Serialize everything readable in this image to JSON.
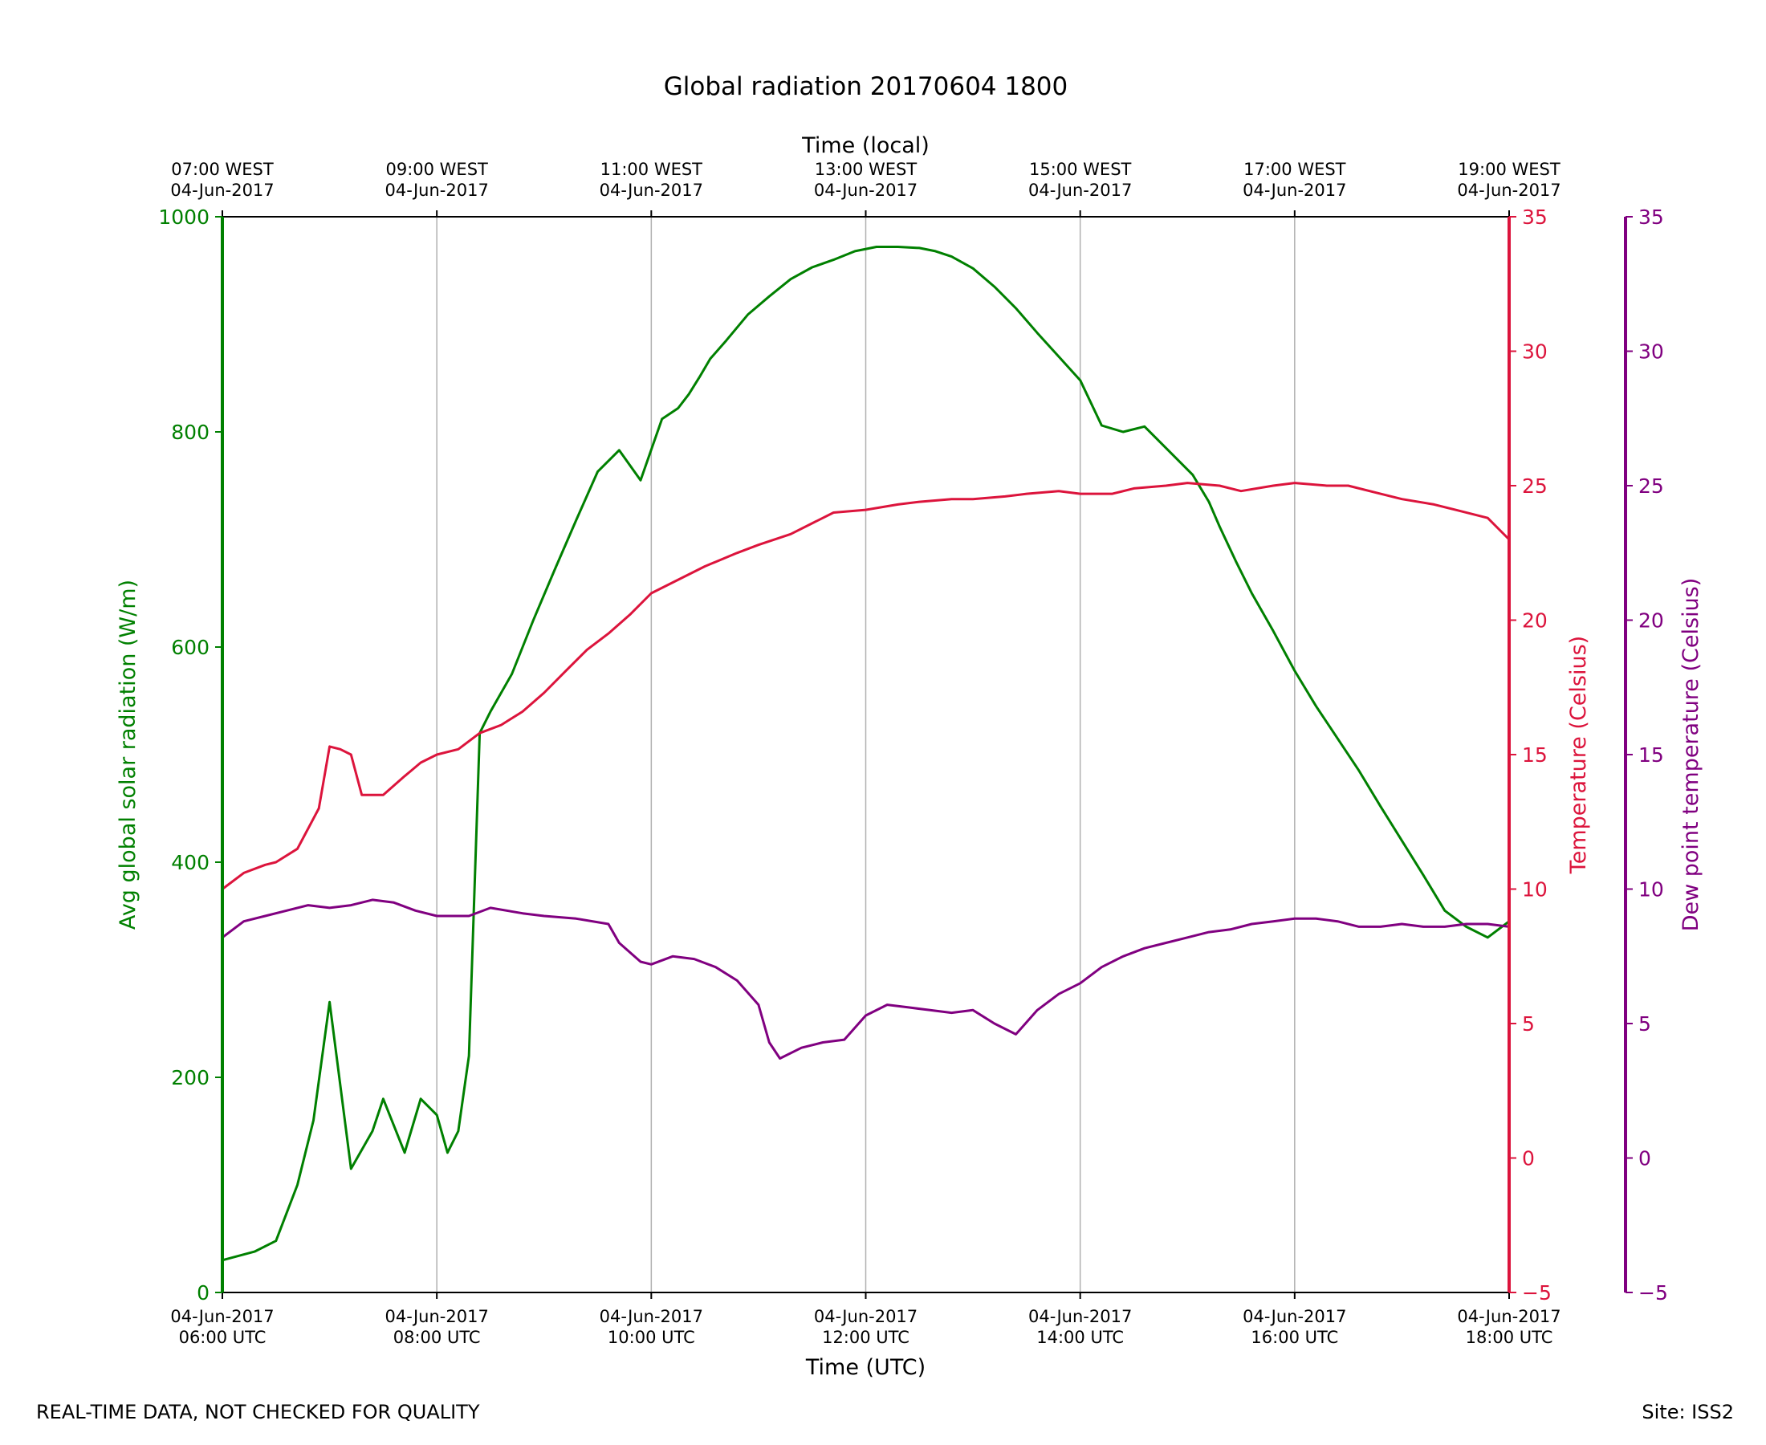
{
  "chart_data": {
    "type": "line",
    "title": "Global radiation 20170604 1800",
    "xlabel_bottom": "Time (UTC)",
    "xlabel_top": "Time (local)",
    "x_unit": "hours UTC on 04-Jun-2017",
    "xlim": [
      6,
      18
    ],
    "bottom_ticks": [
      {
        "x": 6,
        "date": "04-Jun-2017",
        "time": "06:00 UTC"
      },
      {
        "x": 8,
        "date": "04-Jun-2017",
        "time": "08:00 UTC"
      },
      {
        "x": 10,
        "date": "04-Jun-2017",
        "time": "10:00 UTC"
      },
      {
        "x": 12,
        "date": "04-Jun-2017",
        "time": "12:00 UTC"
      },
      {
        "x": 14,
        "date": "04-Jun-2017",
        "time": "14:00 UTC"
      },
      {
        "x": 16,
        "date": "04-Jun-2017",
        "time": "16:00 UTC"
      },
      {
        "x": 18,
        "date": "04-Jun-2017",
        "time": "18:00 UTC"
      }
    ],
    "top_ticks": [
      {
        "x": 6,
        "time": "07:00 WEST",
        "date": "04-Jun-2017"
      },
      {
        "x": 8,
        "time": "09:00 WEST",
        "date": "04-Jun-2017"
      },
      {
        "x": 10,
        "time": "11:00 WEST",
        "date": "04-Jun-2017"
      },
      {
        "x": 12,
        "time": "13:00 WEST",
        "date": "04-Jun-2017"
      },
      {
        "x": 14,
        "time": "15:00 WEST",
        "date": "04-Jun-2017"
      },
      {
        "x": 16,
        "time": "17:00 WEST",
        "date": "04-Jun-2017"
      },
      {
        "x": 18,
        "time": "19:00 WEST",
        "date": "04-Jun-2017"
      }
    ],
    "axes": {
      "radiation": {
        "label": "Avg global solar radiation (W/m)",
        "ylim": [
          0,
          1000
        ],
        "ticks": [
          0,
          200,
          400,
          600,
          800,
          1000
        ],
        "tick_labels": [
          "0",
          "200",
          "400",
          "600",
          "800",
          "1000"
        ],
        "color": "#008000"
      },
      "temperature": {
        "label": "Temperature (Celsius)",
        "ylim": [
          -5,
          35
        ],
        "ticks": [
          -5,
          0,
          5,
          10,
          15,
          20,
          25,
          30,
          35
        ],
        "tick_labels": [
          "−5",
          "0",
          "5",
          "10",
          "15",
          "20",
          "25",
          "30",
          "35"
        ],
        "color": "#dc143c"
      },
      "dewpoint": {
        "label": "Dew point temperature (Celsius)",
        "ylim": [
          -5,
          35
        ],
        "ticks": [
          -5,
          0,
          5,
          10,
          15,
          20,
          25,
          30,
          35
        ],
        "tick_labels": [
          "−5",
          "0",
          "5",
          "10",
          "15",
          "20",
          "25",
          "30",
          "35"
        ],
        "color": "#800080"
      }
    },
    "grid": "vertical",
    "series": [
      {
        "name": "Avg global solar radiation",
        "axis": "radiation",
        "color": "#008000",
        "x": [
          6.0,
          6.3,
          6.5,
          6.7,
          6.85,
          7.0,
          7.2,
          7.4,
          7.5,
          7.7,
          7.85,
          8.0,
          8.1,
          8.2,
          8.3,
          8.4,
          8.5,
          8.7,
          8.9,
          9.1,
          9.3,
          9.5,
          9.7,
          9.9,
          10.1,
          10.25,
          10.35,
          10.45,
          10.55,
          10.7,
          10.9,
          11.1,
          11.3,
          11.5,
          11.7,
          11.9,
          12.1,
          12.3,
          12.5,
          12.65,
          12.8,
          13.0,
          13.2,
          13.4,
          13.6,
          13.8,
          14.0,
          14.2,
          14.4,
          14.6,
          14.8,
          15.0,
          15.05,
          15.2,
          15.3,
          15.45,
          15.6,
          15.8,
          16.0,
          16.2,
          16.4,
          16.6,
          16.8,
          17.0,
          17.2,
          17.4,
          17.6,
          17.8,
          18.0
        ],
        "y": [
          30,
          38,
          48,
          100,
          160,
          270,
          115,
          150,
          180,
          130,
          180,
          165,
          130,
          150,
          220,
          520,
          540,
          575,
          625,
          672,
          718,
          763,
          783,
          755,
          812,
          822,
          835,
          851,
          868,
          885,
          909,
          926,
          942,
          953,
          960,
          968,
          972,
          972,
          971,
          968,
          963,
          952,
          935,
          915,
          892,
          870,
          848,
          806,
          800,
          805,
          785,
          765,
          760,
          735,
          712,
          680,
          650,
          615,
          578,
          545,
          515,
          485,
          452,
          420,
          388,
          355,
          340,
          330,
          345
        ]
      },
      {
        "name": "Temperature",
        "axis": "temperature",
        "color": "#dc143c",
        "x": [
          6.0,
          6.2,
          6.4,
          6.5,
          6.7,
          6.9,
          7.0,
          7.1,
          7.2,
          7.3,
          7.5,
          7.7,
          7.85,
          8.0,
          8.2,
          8.4,
          8.6,
          8.8,
          9.0,
          9.2,
          9.4,
          9.6,
          9.8,
          10.0,
          10.3,
          10.5,
          10.8,
          11.0,
          11.3,
          11.5,
          11.7,
          12.0,
          12.3,
          12.5,
          12.8,
          13.0,
          13.3,
          13.5,
          13.8,
          14.0,
          14.3,
          14.5,
          14.8,
          15.0,
          15.3,
          15.5,
          15.8,
          16.0,
          16.3,
          16.5,
          16.8,
          17.0,
          17.3,
          17.5,
          17.8,
          18.0
        ],
        "y": [
          10.0,
          10.6,
          10.9,
          11.0,
          11.5,
          13.0,
          15.3,
          15.2,
          15.0,
          13.5,
          13.5,
          14.2,
          14.7,
          15.0,
          15.2,
          15.8,
          16.1,
          16.6,
          17.3,
          18.1,
          18.9,
          19.5,
          20.2,
          21.0,
          21.6,
          22.0,
          22.5,
          22.8,
          23.2,
          23.6,
          24.0,
          24.1,
          24.3,
          24.4,
          24.5,
          24.5,
          24.6,
          24.7,
          24.8,
          24.7,
          24.7,
          24.9,
          25.0,
          25.1,
          25.0,
          24.8,
          25.0,
          25.1,
          25.0,
          25.0,
          24.7,
          24.5,
          24.3,
          24.1,
          23.8,
          23.0
        ]
      },
      {
        "name": "Dew point temperature",
        "axis": "dewpoint",
        "color": "#800080",
        "x": [
          6.0,
          6.2,
          6.4,
          6.6,
          6.8,
          7.0,
          7.2,
          7.4,
          7.6,
          7.8,
          8.0,
          8.3,
          8.5,
          8.8,
          9.0,
          9.3,
          9.6,
          9.7,
          9.9,
          10.0,
          10.2,
          10.4,
          10.6,
          10.8,
          11.0,
          11.1,
          11.2,
          11.4,
          11.6,
          11.8,
          12.0,
          12.2,
          12.4,
          12.6,
          12.8,
          13.0,
          13.2,
          13.4,
          13.6,
          13.8,
          14.0,
          14.2,
          14.4,
          14.6,
          14.8,
          15.0,
          15.2,
          15.4,
          15.6,
          15.8,
          16.0,
          16.2,
          16.4,
          16.6,
          16.8,
          17.0,
          17.2,
          17.4,
          17.6,
          17.8,
          18.0
        ],
        "y": [
          8.2,
          8.8,
          9.0,
          9.2,
          9.4,
          9.3,
          9.4,
          9.6,
          9.5,
          9.2,
          9.0,
          9.0,
          9.3,
          9.1,
          9.0,
          8.9,
          8.7,
          8.0,
          7.3,
          7.2,
          7.5,
          7.4,
          7.1,
          6.6,
          5.7,
          4.3,
          3.7,
          4.1,
          4.3,
          4.4,
          5.3,
          5.7,
          5.6,
          5.5,
          5.4,
          5.5,
          5.0,
          4.6,
          5.5,
          6.1,
          6.5,
          7.1,
          7.5,
          7.8,
          8.0,
          8.2,
          8.4,
          8.5,
          8.7,
          8.8,
          8.9,
          8.9,
          8.8,
          8.6,
          8.6,
          8.7,
          8.6,
          8.6,
          8.7,
          8.7,
          8.6
        ]
      }
    ]
  },
  "footer": {
    "left": "REAL-TIME DATA, NOT CHECKED FOR QUALITY",
    "right": "Site: ISS2"
  }
}
